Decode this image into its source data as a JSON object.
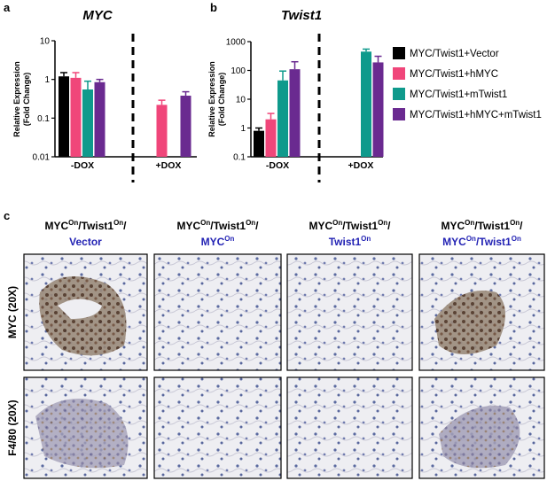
{
  "panel_labels": [
    "a",
    "b",
    "c"
  ],
  "chart_data": [
    {
      "type": "bar",
      "title": "MYC",
      "ylabel": [
        "Relative Expression",
        "(Fold Change)"
      ],
      "categories": [
        "-DOX",
        "+DOX"
      ],
      "log_scale": true,
      "ylim": [
        0.01,
        10
      ],
      "yticks": [
        0.01,
        0.1,
        1,
        10
      ],
      "series": [
        {
          "name": "MYC/Twist1+Vector",
          "color": "#000000",
          "values": [
            1.2,
            null
          ],
          "errors": [
            0.3,
            null
          ]
        },
        {
          "name": "MYC/Twist1+hMYC",
          "color": "#f0467a",
          "values": [
            1.1,
            0.22
          ],
          "errors": [
            0.4,
            0.07
          ]
        },
        {
          "name": "MYC/Twist1+mTwist1",
          "color": "#0f9a8c",
          "values": [
            0.55,
            null
          ],
          "errors": [
            0.35,
            null
          ]
        },
        {
          "name": "MYC/Twist1+hMYC+mTwist1",
          "color": "#6a2a90",
          "values": [
            0.85,
            0.38
          ],
          "errors": [
            0.15,
            0.1
          ]
        }
      ]
    },
    {
      "type": "bar",
      "title": "Twist1",
      "ylabel": [
        "Relative Expression",
        "(Fold Change)"
      ],
      "categories": [
        "-DOX",
        "+DOX"
      ],
      "log_scale": true,
      "ylim": [
        0.1,
        1000
      ],
      "yticks": [
        0.1,
        1,
        10,
        100,
        1000
      ],
      "series": [
        {
          "color": "#000000",
          "values": [
            0.8,
            null
          ],
          "errors": [
            0.2,
            null
          ]
        },
        {
          "color": "#f0467a",
          "values": [
            2,
            null
          ],
          "errors": [
            1.2,
            null
          ]
        },
        {
          "color": "#0f9a8c",
          "values": [
            45,
            450
          ],
          "errors": [
            50,
            100
          ]
        },
        {
          "color": "#6a2a90",
          "values": [
            110,
            190
          ],
          "errors": [
            90,
            120
          ]
        }
      ]
    }
  ],
  "panel_c": {
    "columns": [
      {
        "line1": [
          "MYC",
          "On",
          "/Twist1",
          "On",
          "/"
        ],
        "line2": [
          "Vector"
        ]
      },
      {
        "line1": [
          "MYC",
          "On",
          "/Twist1",
          "On",
          "/"
        ],
        "line2": [
          "MYC",
          "On"
        ]
      },
      {
        "line1": [
          "MYC",
          "On",
          "/Twist1",
          "On",
          "/"
        ],
        "line2": [
          "Twist1",
          "On"
        ]
      },
      {
        "line1": [
          "MYC",
          "On",
          "/Twist1",
          "On",
          "/"
        ],
        "line2": [
          "MYC",
          "On",
          "/Twist1",
          "On"
        ]
      }
    ],
    "rows": [
      "MYC (20X)",
      "F4/80 (20X)"
    ]
  }
}
